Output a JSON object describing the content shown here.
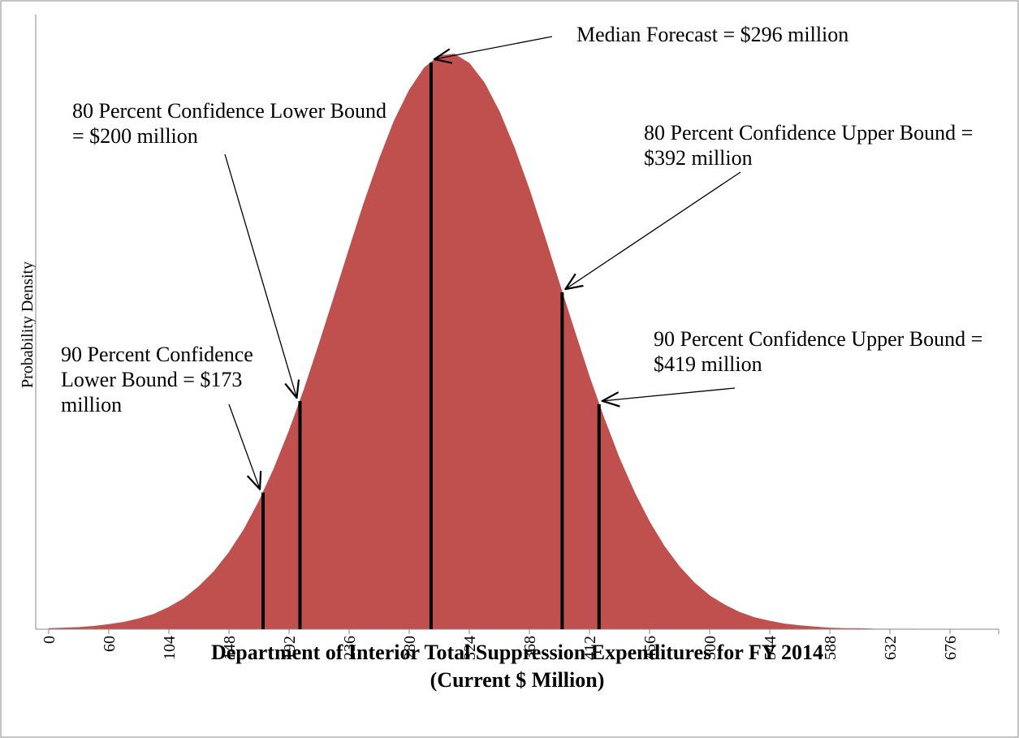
{
  "chart_data": {
    "type": "area",
    "ylabel": "Probability Density",
    "xlabel": [
      "Department of Interior Total Suppression Expenditures for FY 2014",
      "(Current $ Million)"
    ],
    "color": "#c0504d",
    "ylim": [
      0,
      100
    ],
    "categories": [
      0,
      null,
      null,
      null,
      60,
      null,
      null,
      null,
      104,
      null,
      null,
      null,
      148,
      null,
      null,
      null,
      192,
      null,
      null,
      null,
      236,
      null,
      null,
      null,
      280,
      null,
      null,
      null,
      324,
      null,
      null,
      null,
      368,
      null,
      null,
      null,
      412,
      null,
      null,
      null,
      456,
      null,
      null,
      null,
      500,
      null,
      null,
      null,
      544,
      null,
      null,
      null,
      588,
      null,
      null,
      null,
      632,
      null,
      null,
      null,
      676
    ],
    "values": [
      0.1,
      0.2,
      0.3,
      0.5,
      0.8,
      1.2,
      1.8,
      2.6,
      3.8,
      5.3,
      7.4,
      10.0,
      13.3,
      17.3,
      22.2,
      27.9,
      34.4,
      41.6,
      49.5,
      57.7,
      66.0,
      74.1,
      81.6,
      88.3,
      93.6,
      97.5,
      99.6,
      99.9,
      98.3,
      94.9,
      89.9,
      83.6,
      76.3,
      68.3,
      60.0,
      51.8,
      43.8,
      36.4,
      29.6,
      23.7,
      18.6,
      14.3,
      10.8,
      8.0,
      5.8,
      4.2,
      2.9,
      2.0,
      1.4,
      0.9,
      0.6,
      0.4,
      0.2,
      0.1,
      0.1,
      0.0,
      0,
      0,
      0,
      0,
      0
    ],
    "markers": [
      {
        "value": 173,
        "label": "90 Percent Confidence Lower Bound = $173 million"
      },
      {
        "value": 200,
        "label": "80 Percent Confidence Lower Bound = $200 million"
      },
      {
        "value": 296,
        "label": "Median Forecast = $296 million"
      },
      {
        "value": 392,
        "label": "80 Percent Confidence Upper Bound = $392 million"
      },
      {
        "value": 419,
        "label": "90 Percent Confidence Upper Bound = $419 million"
      }
    ]
  }
}
